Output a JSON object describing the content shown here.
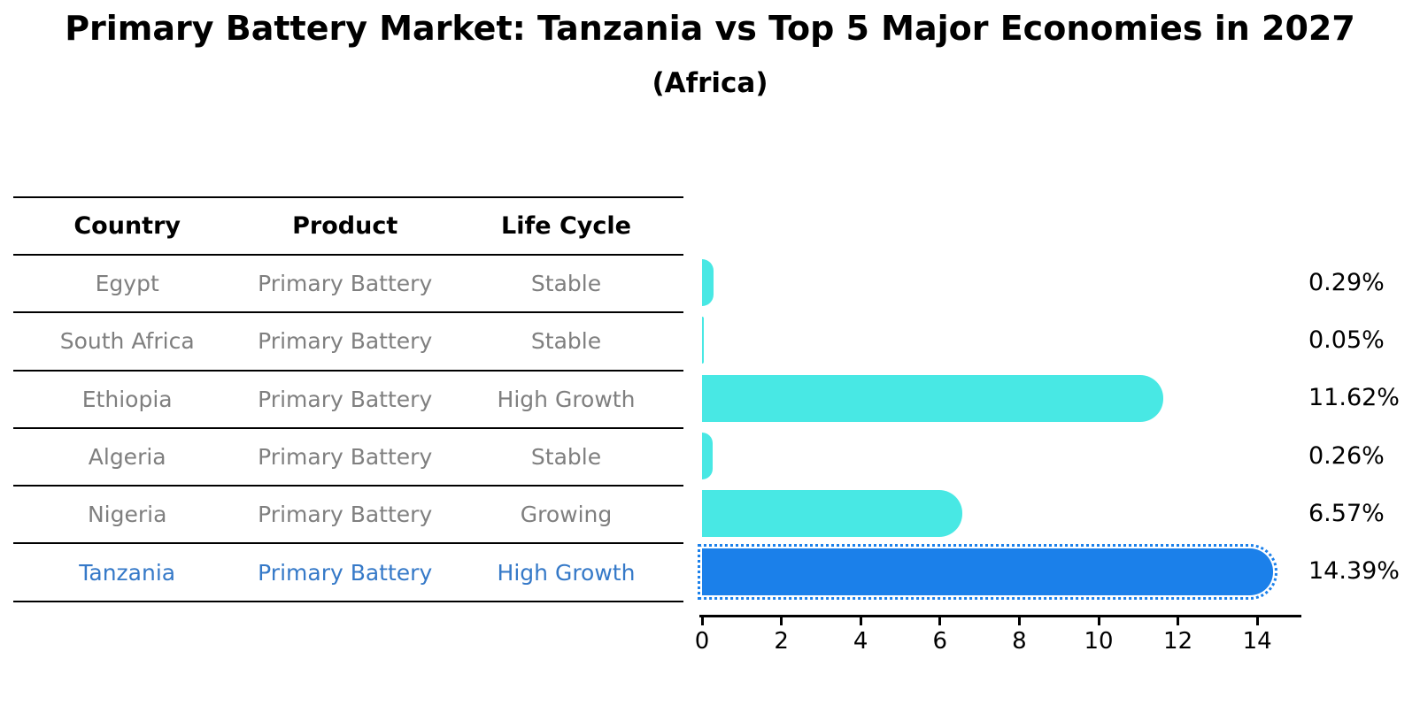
{
  "title": "Primary Battery Market: Tanzania vs Top 5 Major Economies in 2027",
  "subtitle": "(Africa)",
  "table": {
    "headers": [
      "Country",
      "Product",
      "Life Cycle"
    ]
  },
  "chart_data": {
    "type": "bar",
    "orientation": "horizontal",
    "title": "Primary Battery Market: Tanzania vs Top 5 Major Economies in 2027",
    "subtitle": "(Africa)",
    "xlabel": "",
    "ylabel": "",
    "xlim": [
      0,
      15.1
    ],
    "xticks": [
      0,
      2,
      4,
      6,
      8,
      10,
      12,
      14
    ],
    "grid": false,
    "legend": "none",
    "categories": [
      "Egypt",
      "South Africa",
      "Ethiopia",
      "Algeria",
      "Nigeria",
      "Tanzania"
    ],
    "values": [
      0.29,
      0.05,
      11.62,
      0.26,
      6.57,
      14.39
    ],
    "value_labels": [
      "0.29%",
      "0.05%",
      "11.62%",
      "0.26%",
      "6.57%",
      "14.39%"
    ],
    "rows": [
      {
        "country": "Egypt",
        "product": "Primary Battery",
        "life_cycle": "Stable",
        "value": 0.29,
        "label": "0.29%",
        "highlight": false
      },
      {
        "country": "South Africa",
        "product": "Primary Battery",
        "life_cycle": "Stable",
        "value": 0.05,
        "label": "0.05%",
        "highlight": false
      },
      {
        "country": "Ethiopia",
        "product": "Primary Battery",
        "life_cycle": "High Growth",
        "value": 11.62,
        "label": "11.62%",
        "highlight": false
      },
      {
        "country": "Algeria",
        "product": "Primary Battery",
        "life_cycle": "Stable",
        "value": 0.26,
        "label": "0.26%",
        "highlight": false
      },
      {
        "country": "Nigeria",
        "product": "Primary Battery",
        "life_cycle": "Growing",
        "value": 6.57,
        "label": "6.57%",
        "highlight": false
      },
      {
        "country": "Tanzania",
        "product": "Primary Battery",
        "life_cycle": "High Growth",
        "value": 14.39,
        "label": "14.39%",
        "highlight": true
      }
    ],
    "colors": {
      "bar": "#48E8E4",
      "highlight_bar": "#1B80EA",
      "highlight_text": "#3579C8",
      "row_text": "#7F7F7F",
      "axis_text": "#000000"
    }
  }
}
